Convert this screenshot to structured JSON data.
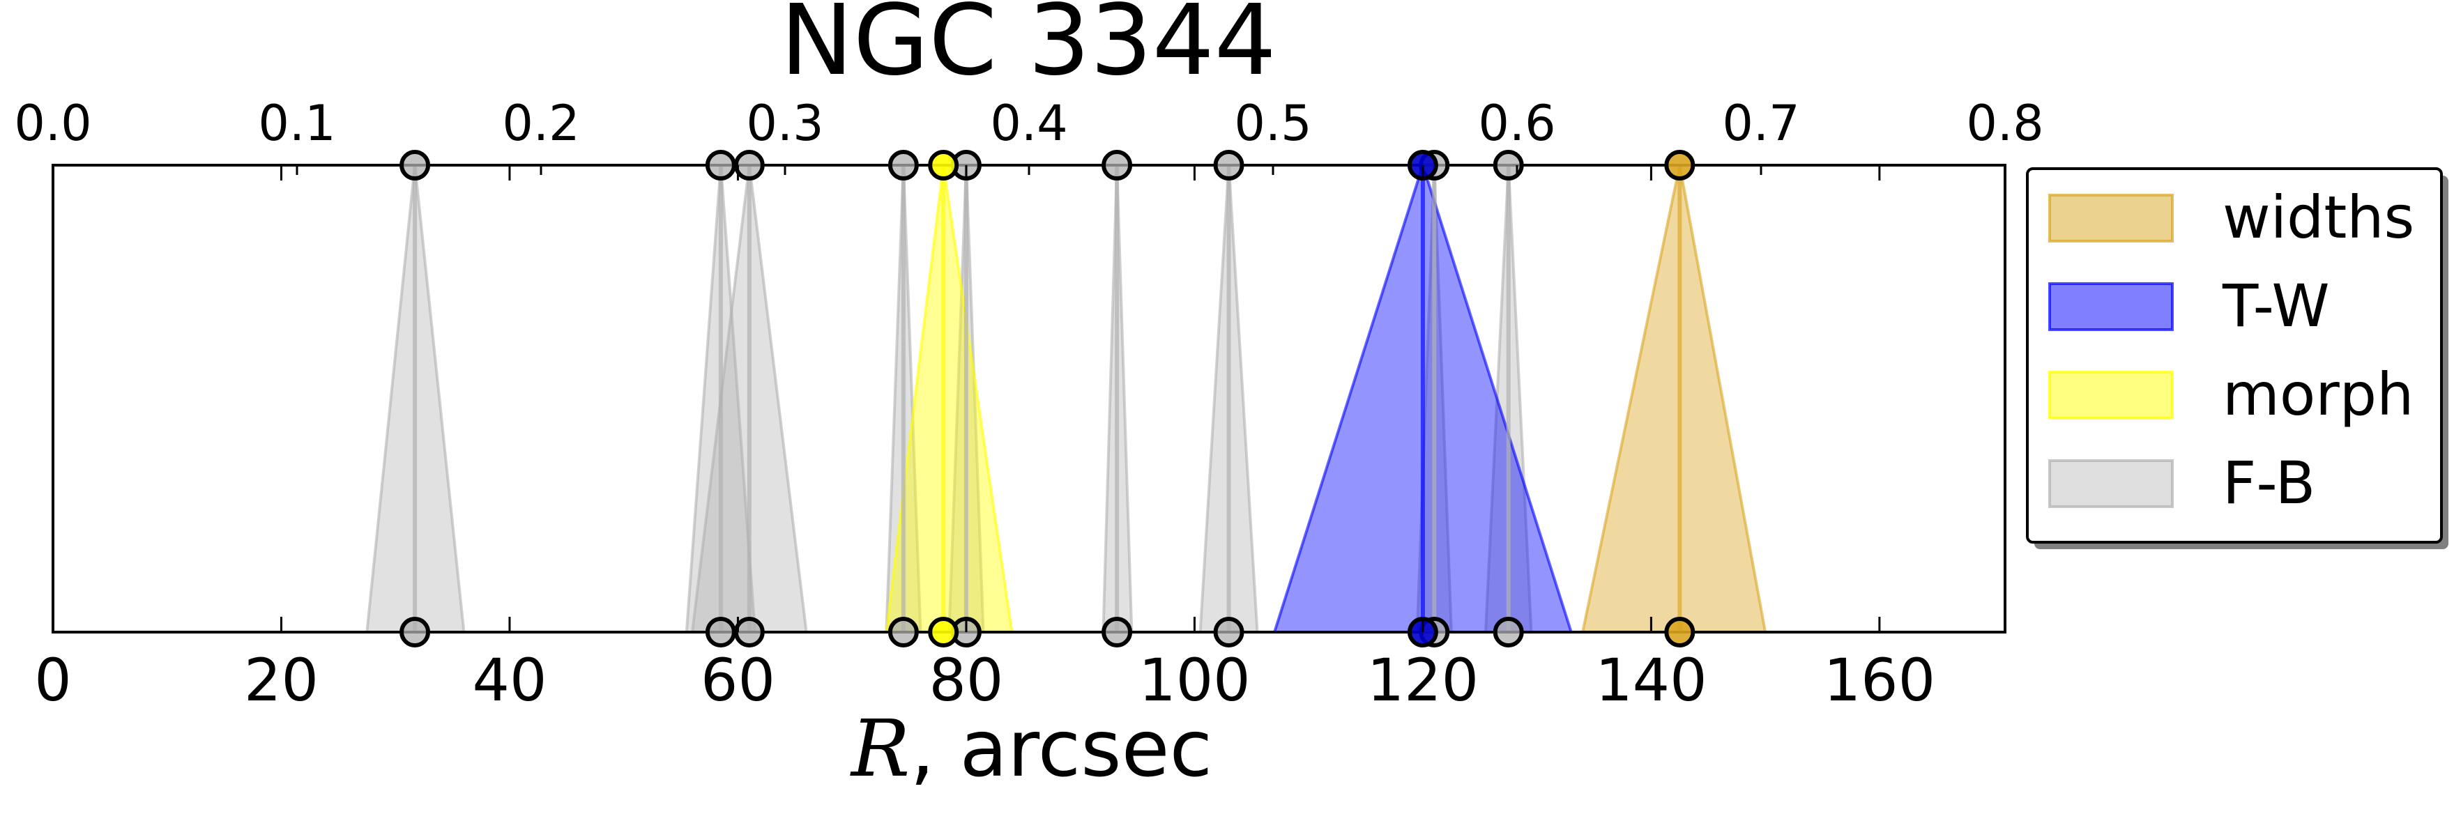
{
  "chart_data": {
    "type": "area",
    "title": "NGC 3344",
    "xlabel_symbol": "R",
    "xlabel_rest": ", arcsec",
    "xlim": [
      0,
      171
    ],
    "xticks": [
      0,
      20,
      40,
      60,
      80,
      100,
      120,
      140,
      160
    ],
    "top_axis": {
      "xlim": [
        0,
        0.8
      ],
      "xticks": [
        "0.0",
        "0.1",
        "0.2",
        "0.3",
        "0.4",
        "0.5",
        "0.6",
        "0.7",
        "0.8"
      ]
    },
    "grid": false,
    "legend_position": "right, outside plot, top",
    "series": [
      {
        "name": "F-B",
        "color": "#b0b0b0",
        "marker_color": "#b0b0b0",
        "peaks": [
          {
            "r": 31.7,
            "lo": 27.5,
            "hi": 36.0
          },
          {
            "r": 58.5,
            "lo": 55.5,
            "hi": 61.5
          },
          {
            "r": 61.0,
            "lo": 56.0,
            "hi": 66.0
          },
          {
            "r": 74.5,
            "lo": 73.0,
            "hi": 76.0
          },
          {
            "r": 80.0,
            "lo": 78.5,
            "hi": 81.5
          },
          {
            "r": 93.2,
            "lo": 92.0,
            "hi": 94.5
          },
          {
            "r": 103.0,
            "lo": 100.5,
            "hi": 105.5
          },
          {
            "r": 121.0,
            "lo": 119.5,
            "hi": 122.5
          },
          {
            "r": 127.5,
            "lo": 125.5,
            "hi": 129.5
          }
        ]
      },
      {
        "name": "morph",
        "color": "#ffff00",
        "marker_color": "#ffff00",
        "peaks": [
          {
            "r": 78.0,
            "lo": 73.0,
            "hi": 84.0
          }
        ]
      },
      {
        "name": "T-W",
        "color": "#0000ff",
        "marker_color": "#0000cc",
        "peaks": [
          {
            "r": 120.0,
            "lo": 107.0,
            "hi": 133.0
          }
        ]
      },
      {
        "name": "widths",
        "color": "#daa520",
        "marker_color": "#daa520",
        "peaks": [
          {
            "r": 142.5,
            "lo": 134.0,
            "hi": 150.0
          }
        ]
      }
    ],
    "legend": [
      "widths",
      "T-W",
      "morph",
      "F-B"
    ]
  }
}
